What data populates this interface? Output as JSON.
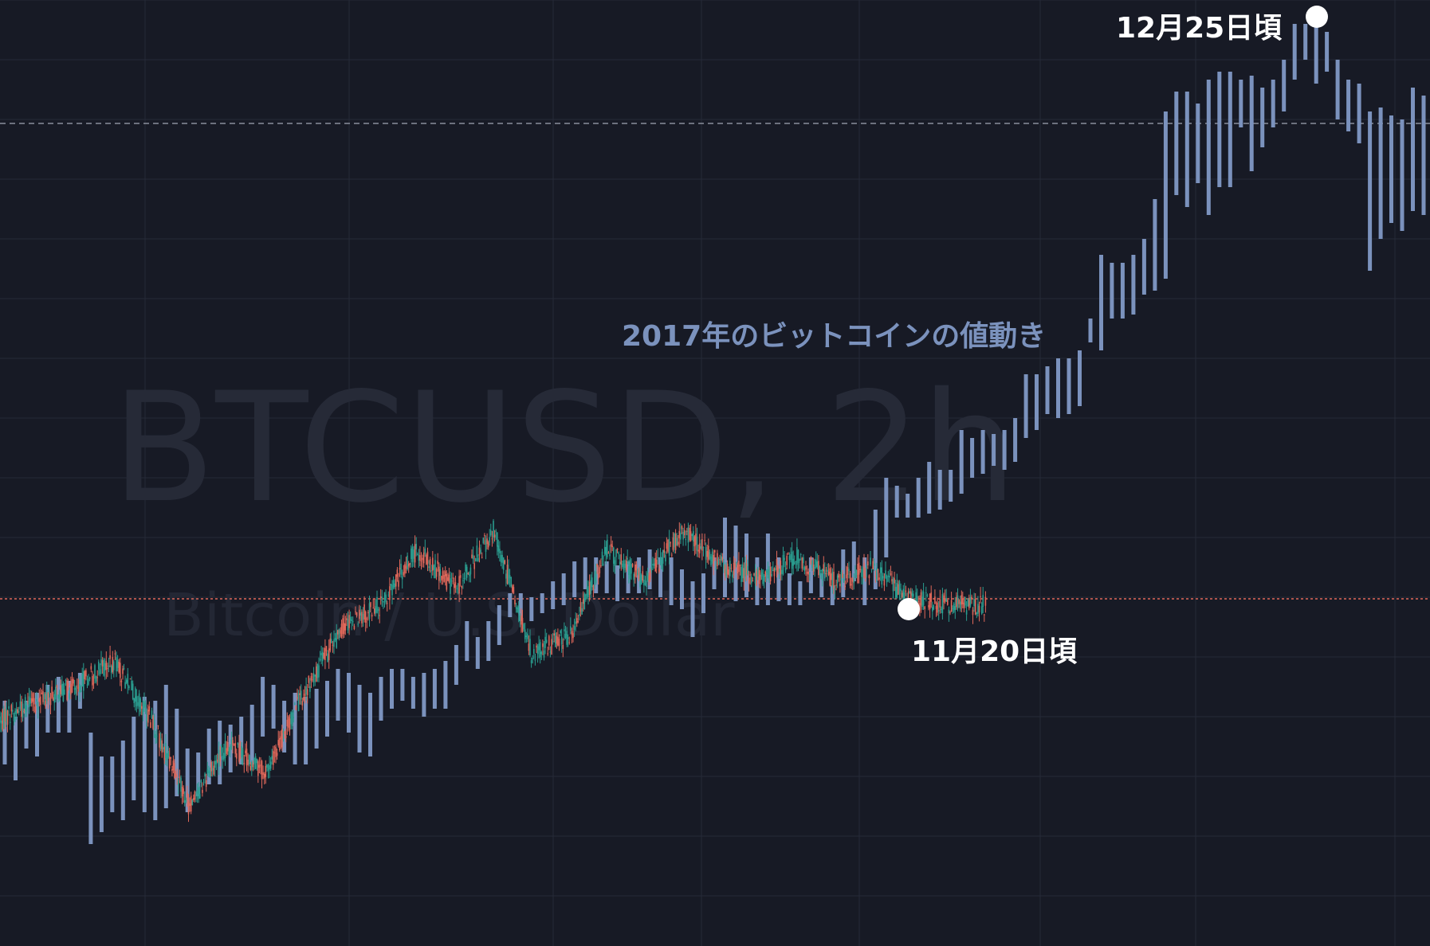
{
  "chart_data": {
    "type": "candlestick",
    "watermark": {
      "symbol": "BTCUSD, 2h",
      "description": "Bitcoin / U.S. Dollar"
    },
    "annotations": {
      "overlay_label": "2017年のビットコインの値動き",
      "low_label": "11月20日頃",
      "high_label": "12月25日頃"
    },
    "colors": {
      "background": "#171a25",
      "grid": "#262a38",
      "overlay_bars": "#7b92bd",
      "candle_up": "#2a9d8f",
      "candle_down": "#e0685a",
      "price_line": "#e0685a",
      "dashed_line": "#8a8f9c",
      "marker": "#ffffff"
    },
    "overlay_series": {
      "name": "2017",
      "bars": [
        [
          880,
          960
        ],
        [
          900,
          980
        ],
        [
          880,
          940
        ],
        [
          870,
          950
        ],
        [
          860,
          920
        ],
        [
          850,
          920
        ],
        [
          855,
          920
        ],
        [
          845,
          890
        ],
        [
          920,
          1060
        ],
        [
          950,
          1045
        ],
        [
          950,
          1020
        ],
        [
          930,
          1030
        ],
        [
          900,
          1005
        ],
        [
          875,
          1020
        ],
        [
          880,
          1030
        ],
        [
          860,
          1015
        ],
        [
          890,
          1000
        ],
        [
          940,
          1020
        ],
        [
          945,
          1000
        ],
        [
          915,
          985
        ],
        [
          905,
          985
        ],
        [
          910,
          970
        ],
        [
          900,
          960
        ],
        [
          885,
          960
        ],
        [
          850,
          925
        ],
        [
          860,
          915
        ],
        [
          880,
          945
        ],
        [
          870,
          960
        ],
        [
          875,
          960
        ],
        [
          865,
          940
        ],
        [
          855,
          925
        ],
        [
          840,
          905
        ],
        [
          845,
          920
        ],
        [
          860,
          945
        ],
        [
          870,
          950
        ],
        [
          850,
          905
        ],
        [
          840,
          890
        ],
        [
          840,
          880
        ],
        [
          850,
          890
        ],
        [
          845,
          900
        ],
        [
          840,
          890
        ],
        [
          830,
          890
        ],
        [
          810,
          860
        ],
        [
          780,
          830
        ],
        [
          800,
          840
        ],
        [
          780,
          830
        ],
        [
          760,
          810
        ],
        [
          745,
          775
        ],
        [
          745,
          780
        ],
        [
          750,
          780
        ],
        [
          745,
          770
        ],
        [
          730,
          765
        ],
        [
          720,
          760
        ],
        [
          705,
          750
        ],
        [
          700,
          740
        ],
        [
          700,
          745
        ],
        [
          705,
          745
        ],
        [
          710,
          755
        ],
        [
          705,
          745
        ],
        [
          700,
          745
        ],
        [
          690,
          740
        ],
        [
          700,
          750
        ],
        [
          700,
          760
        ],
        [
          715,
          765
        ],
        [
          730,
          800
        ],
        [
          720,
          770
        ],
        [
          700,
          740
        ],
        [
          650,
          750
        ],
        [
          660,
          755
        ],
        [
          670,
          750
        ],
        [
          700,
          760
        ],
        [
          670,
          760
        ],
        [
          700,
          755
        ],
        [
          720,
          760
        ],
        [
          730,
          760
        ],
        [
          700,
          745
        ],
        [
          720,
          750
        ],
        [
          735,
          760
        ],
        [
          690,
          750
        ],
        [
          680,
          730
        ],
        [
          700,
          760
        ],
        [
          640,
          740
        ],
        [
          600,
          700
        ],
        [
          610,
          650
        ],
        [
          620,
          650
        ],
        [
          600,
          650
        ],
        [
          580,
          645
        ],
        [
          590,
          640
        ],
        [
          590,
          630
        ],
        [
          540,
          620
        ],
        [
          550,
          600
        ],
        [
          540,
          595
        ],
        [
          545,
          585
        ],
        [
          540,
          590
        ],
        [
          525,
          580
        ],
        [
          470,
          550
        ],
        [
          470,
          540
        ],
        [
          460,
          520
        ],
        [
          450,
          525
        ],
        [
          450,
          520
        ],
        [
          440,
          510
        ],
        [
          400,
          430
        ],
        [
          320,
          440
        ],
        [
          330,
          400
        ],
        [
          330,
          400
        ],
        [
          320,
          395
        ],
        [
          300,
          370
        ],
        [
          250,
          365
        ],
        [
          140,
          350
        ],
        [
          115,
          245
        ],
        [
          115,
          260
        ],
        [
          130,
          230
        ],
        [
          100,
          270
        ],
        [
          90,
          235
        ],
        [
          90,
          235
        ],
        [
          100,
          160
        ],
        [
          95,
          215
        ],
        [
          110,
          185
        ],
        [
          100,
          160
        ],
        [
          75,
          140
        ],
        [
          30,
          100
        ],
        [
          30,
          75
        ],
        [
          30,
          105
        ],
        [
          40,
          90
        ],
        [
          75,
          150
        ],
        [
          100,
          165
        ],
        [
          105,
          180
        ],
        [
          140,
          340
        ],
        [
          135,
          300
        ],
        [
          145,
          280
        ],
        [
          150,
          290
        ],
        [
          110,
          265
        ],
        [
          120,
          270
        ]
      ]
    },
    "candle_series": {
      "name": "BTCUSD",
      "segments": [
        [
          905,
          880
        ],
        [
          880,
          862
        ],
        [
          862,
          830
        ],
        [
          830,
          905
        ],
        [
          905,
          1015
        ],
        [
          1015,
          935
        ],
        [
          935,
          970
        ],
        [
          970,
          870
        ],
        [
          870,
          790
        ],
        [
          790,
          760
        ],
        [
          760,
          690
        ],
        [
          690,
          740
        ],
        [
          740,
          665
        ],
        [
          665,
          820
        ],
        [
          820,
          800
        ],
        [
          800,
          690
        ],
        [
          690,
          730
        ],
        [
          730,
          665
        ],
        [
          665,
          710
        ],
        [
          710,
          725
        ],
        [
          725,
          700
        ],
        [
          700,
          730
        ],
        [
          730,
          712
        ],
        [
          712,
          755
        ],
        [
          755,
          758
        ],
        [
          758,
          760
        ]
      ]
    },
    "reference_lines": {
      "dashed": 155,
      "dotted": 752
    },
    "markers": [
      {
        "label": "11月20日頃",
        "x": 1140,
        "y": 765
      },
      {
        "label": "12月25日頃",
        "x": 1652,
        "y": 21
      }
    ]
  }
}
